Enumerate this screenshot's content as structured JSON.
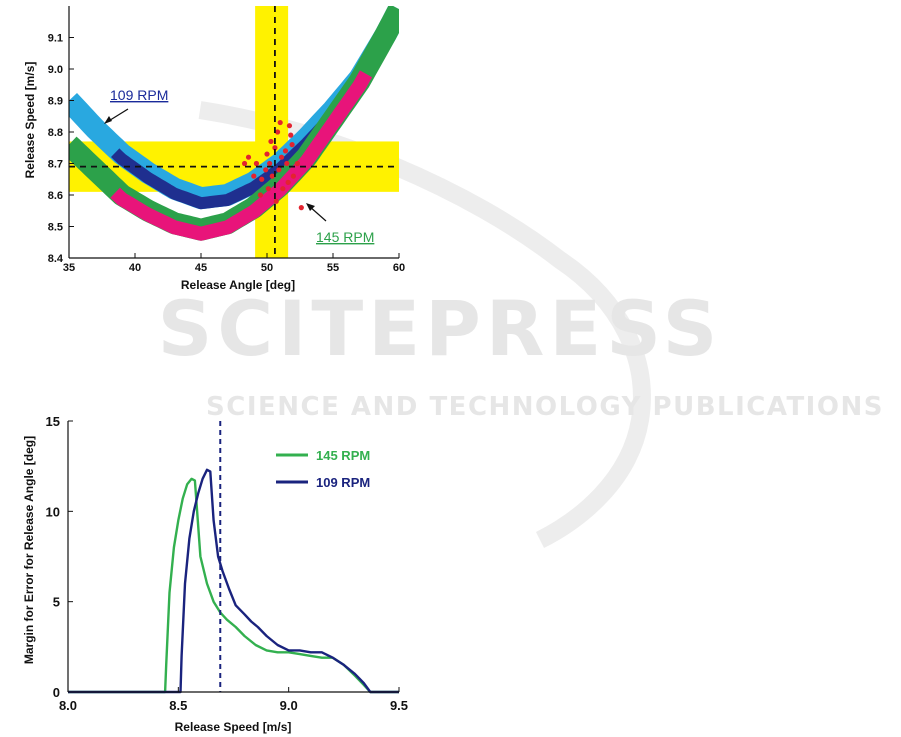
{
  "watermark": {
    "title": "SCITEPRESS",
    "subtitle": "SCIENCE AND TECHNOLOGY PUBLICATIONS"
  },
  "chart_data": [
    {
      "type": "scatter",
      "xlabel": "Release Angle [deg]",
      "ylabel": "Release Speed [m/s]",
      "xlim": [
        35,
        60
      ],
      "ylim": [
        8.4,
        9.2
      ],
      "xticks": [
        "35",
        "40",
        "45",
        "50",
        "55",
        "60"
      ],
      "yticks": [
        "8.4",
        "8.5",
        "8.6",
        "8.7",
        "8.8",
        "8.9",
        "9.0",
        "9.1"
      ],
      "grid": false,
      "target": {
        "angle": 50.6,
        "speed": 8.69,
        "angle_band": [
          49.1,
          51.6
        ],
        "speed_band": [
          8.61,
          8.77
        ]
      },
      "series": [
        {
          "name": "109 RPM",
          "color_outer": "#29a8e0",
          "color_inner": "#1f2f8f",
          "min_point": [
            45,
            8.555
          ],
          "curve": [
            [
              35,
              8.9
            ],
            [
              37,
              8.81
            ],
            [
              39,
              8.73
            ],
            [
              41,
              8.67
            ],
            [
              43,
              8.62
            ],
            [
              45,
              8.59
            ],
            [
              47,
              8.6
            ],
            [
              49,
              8.64
            ],
            [
              51,
              8.7
            ],
            [
              53,
              8.78
            ],
            [
              55,
              8.87
            ],
            [
              57,
              8.97
            ],
            [
              59,
              9.11
            ],
            [
              60,
              9.19
            ]
          ]
        },
        {
          "name": "145 RPM",
          "color_outer": "#2ca14a",
          "color_inner": "#e8147a",
          "min_point": [
            45,
            8.47
          ],
          "curve": [
            [
              35,
              8.76
            ],
            [
              37,
              8.68
            ],
            [
              39,
              8.6
            ],
            [
              41,
              8.55
            ],
            [
              43,
              8.51
            ],
            [
              45,
              8.49
            ],
            [
              47,
              8.51
            ],
            [
              49,
              8.56
            ],
            [
              51,
              8.63
            ],
            [
              53,
              8.72
            ],
            [
              55,
              8.84
            ],
            [
              57,
              8.96
            ],
            [
              59,
              9.11
            ],
            [
              60,
              9.19
            ]
          ]
        }
      ],
      "points": [
        [
          48.6,
          8.72
        ],
        [
          49.2,
          8.7
        ],
        [
          49.6,
          8.65
        ],
        [
          50.0,
          8.73
        ],
        [
          50.3,
          8.77
        ],
        [
          50.6,
          8.75
        ],
        [
          50.9,
          8.68
        ],
        [
          51.2,
          8.62
        ],
        [
          51.5,
          8.7
        ],
        [
          51.8,
          8.79
        ],
        [
          52.0,
          8.66
        ],
        [
          50.1,
          8.62
        ],
        [
          50.7,
          8.58
        ],
        [
          49.9,
          8.68
        ],
        [
          51.4,
          8.74
        ],
        [
          51.0,
          8.83
        ],
        [
          51.7,
          8.82
        ],
        [
          52.3,
          8.7
        ],
        [
          50.4,
          8.66
        ],
        [
          49.5,
          8.6
        ],
        [
          48.3,
          8.7
        ],
        [
          51.1,
          8.72
        ],
        [
          52.6,
          8.56
        ],
        [
          50.8,
          8.8
        ],
        [
          51.9,
          8.76
        ],
        [
          50.2,
          8.7
        ],
        [
          49.0,
          8.66
        ],
        [
          51.6,
          8.64
        ]
      ],
      "annotations": [
        {
          "text": "109 RPM",
          "color": "#1a2a9a",
          "arrow_to": [
            37.6,
            8.83
          ]
        },
        {
          "text": "145 RPM",
          "color": "#2ca14a",
          "arrow_to": [
            53.2,
            8.57
          ]
        }
      ]
    },
    {
      "type": "line",
      "xlabel": "Release Speed [m/s]",
      "ylabel": "Margin for Error for Release Angle [deg]",
      "xlim": [
        8.0,
        9.5
      ],
      "ylim": [
        0,
        15
      ],
      "xticks": [
        "8.0",
        "8.5",
        "9.0",
        "9.5"
      ],
      "yticks": [
        "0",
        "5",
        "10",
        "15"
      ],
      "grid": false,
      "legend": "top-right",
      "vline": 8.69,
      "series": [
        {
          "name": "145 RPM",
          "color": "#33b04f",
          "x": [
            8.0,
            8.44,
            8.445,
            8.46,
            8.48,
            8.5,
            8.52,
            8.54,
            8.56,
            8.575,
            8.6,
            8.63,
            8.66,
            8.69,
            8.72,
            8.76,
            8.8,
            8.85,
            8.9,
            8.95,
            9.0,
            9.05,
            9.1,
            9.15,
            9.2,
            9.25,
            9.3,
            9.34,
            9.37,
            9.5
          ],
          "values": [
            0,
            0,
            1.5,
            5.5,
            8.0,
            9.5,
            10.7,
            11.5,
            11.8,
            11.7,
            7.5,
            6.0,
            5.0,
            4.4,
            4.0,
            3.6,
            3.1,
            2.6,
            2.3,
            2.2,
            2.2,
            2.1,
            2.0,
            1.9,
            1.9,
            1.5,
            0.9,
            0.4,
            0,
            0
          ]
        },
        {
          "name": "109 RPM",
          "color": "#1a237e",
          "x": [
            8.0,
            8.51,
            8.515,
            8.53,
            8.55,
            8.57,
            8.59,
            8.61,
            8.63,
            8.645,
            8.66,
            8.68,
            8.7,
            8.73,
            8.76,
            8.8,
            8.83,
            8.86,
            8.9,
            8.95,
            9.0,
            9.05,
            9.1,
            9.15,
            9.2,
            9.25,
            9.3,
            9.34,
            9.37,
            9.5
          ],
          "values": [
            0,
            0,
            2.0,
            6.0,
            8.5,
            10.0,
            11.0,
            11.8,
            12.3,
            12.2,
            9.5,
            7.5,
            6.7,
            5.7,
            4.8,
            4.3,
            3.9,
            3.6,
            3.1,
            2.6,
            2.3,
            2.3,
            2.2,
            2.2,
            1.9,
            1.5,
            1.0,
            0.5,
            0,
            0
          ]
        }
      ]
    }
  ]
}
